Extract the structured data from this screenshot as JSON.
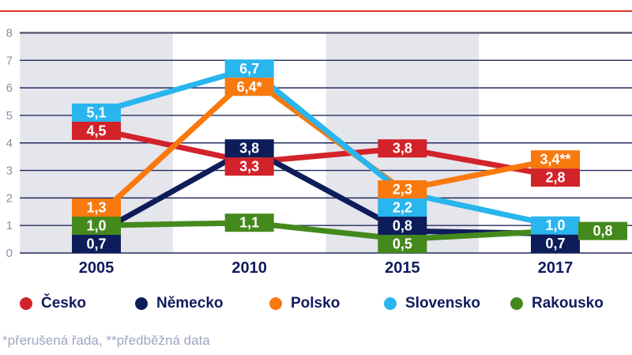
{
  "footnote": {
    "text": "*přerušená řada, **předběžná data"
  },
  "accent": {
    "top_rule_color": "#df382e"
  },
  "chart_data": {
    "type": "line",
    "title": "",
    "xlabel": "",
    "ylabel": "",
    "categories": [
      "2005",
      "2010",
      "2015",
      "2017"
    ],
    "series": [
      {
        "name": "Česko",
        "color": "#d2232a",
        "values": [
          4.5,
          3.3,
          3.8,
          2.8
        ],
        "labels": [
          "4,5",
          "3,3",
          "3,8",
          "2,8"
        ]
      },
      {
        "name": "Německo",
        "color": "#0d1d5a",
        "values": [
          0.7,
          3.8,
          0.8,
          0.7
        ],
        "labels": [
          "0,7",
          "3,8",
          "0,8",
          "0,7"
        ]
      },
      {
        "name": "Polsko",
        "color": "#f8790e",
        "values": [
          1.3,
          6.4,
          2.3,
          3.4
        ],
        "labels": [
          "1,3",
          "6,4*",
          "2,3",
          "3,4**"
        ],
        "label_offsets": [
          null,
          null,
          null,
          null
        ]
      },
      {
        "name": "Slovensko",
        "color": "#29b5ee",
        "values": [
          5.1,
          6.7,
          2.2,
          1.0
        ],
        "labels": [
          "5,1",
          "6,7",
          "2,2",
          "1,0"
        ]
      },
      {
        "name": "Rakousko",
        "color": "#44891c",
        "values": [
          1.0,
          1.1,
          0.5,
          0.8
        ],
        "labels": [
          "1,0",
          "1,1",
          "0,5",
          "0,8"
        ],
        "label_offsets": [
          null,
          null,
          null,
          {
            "dx": 60
          }
        ]
      }
    ],
    "ylim": [
      0,
      8
    ],
    "yticks": [
      0,
      1,
      2,
      3,
      4,
      5,
      6,
      7,
      8
    ],
    "grid": true,
    "banded_categories": [
      "2005",
      "2015"
    ],
    "legend_position": "bottom",
    "colors": {
      "gridline": "#232b5f",
      "gridline_top": "#50506a",
      "band": "#e5e5ec",
      "ytick_label": "#8d8da9",
      "xtick_label": "#101a5e",
      "value_label_text": "#ffffff"
    }
  }
}
